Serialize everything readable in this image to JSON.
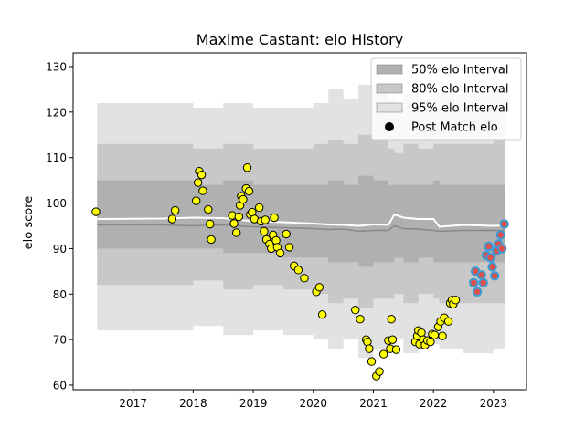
{
  "chart_data": {
    "type": "scatter",
    "title": "Maxime Castant: elo History",
    "xlabel": "",
    "ylabel": "elo score",
    "xlim": [
      2016.0,
      2023.55
    ],
    "ylim": [
      59,
      133
    ],
    "x_ticks": [
      2017,
      2018,
      2019,
      2020,
      2021,
      2022,
      2023
    ],
    "y_ticks": [
      60,
      70,
      80,
      90,
      100,
      110,
      120,
      130
    ],
    "grid": false,
    "legend_position": "top-right",
    "legend": [
      {
        "label": "50% elo Interval",
        "kind": "band",
        "color": "#b0b0b0"
      },
      {
        "label": "80% elo Interval",
        "kind": "band",
        "color": "#c8c8c8"
      },
      {
        "label": "95% elo Interval",
        "kind": "band",
        "color": "#e2e2e2"
      },
      {
        "label": "Post Match elo",
        "kind": "marker",
        "color": "#000000"
      }
    ],
    "colors": {
      "band95": "#e2e2e2",
      "band80": "#c8c8c8",
      "band50": "#b0b0b0",
      "median_line": "#888888",
      "mean_line": "#ffffff",
      "point_fill": "#ffff00",
      "point_edge": "#000000",
      "recent_fill": "#e0504a",
      "recent_edge": "#3a9bd5"
    },
    "bands": {
      "x": [
        2016.4,
        2017.5,
        2018.0,
        2018.5,
        2019.0,
        2019.5,
        2020.0,
        2020.25,
        2020.5,
        2020.75,
        2021.0,
        2021.25,
        2021.35,
        2021.5,
        2021.75,
        2022.0,
        2022.1,
        2022.5,
        2023.0,
        2023.2
      ],
      "lo95": [
        72,
        72,
        73,
        71,
        72,
        71,
        70,
        68,
        70,
        66,
        68,
        68,
        70,
        67,
        70,
        69,
        68,
        67,
        68,
        66
      ],
      "hi95": [
        122,
        122,
        121,
        122,
        121,
        121,
        122,
        125,
        123,
        126,
        126,
        123,
        122,
        124,
        123,
        124,
        124,
        124,
        125,
        127
      ],
      "lo80": [
        82,
        82,
        83,
        81,
        82,
        81,
        80,
        78,
        79,
        77,
        79,
        79,
        80,
        78,
        80,
        79,
        78,
        78,
        78,
        77
      ],
      "hi80": [
        113,
        113,
        112,
        113,
        112,
        112,
        113,
        114,
        113,
        115,
        114,
        112,
        111,
        113,
        112,
        113,
        113,
        113,
        114,
        116
      ],
      "lo50": [
        90,
        90,
        90,
        89,
        89,
        88,
        88,
        87,
        87,
        86,
        87,
        87,
        88,
        87,
        88,
        87,
        87,
        87,
        87,
        86
      ],
      "hi50": [
        105,
        105,
        104,
        105,
        104,
        104,
        104,
        105,
        104,
        106,
        105,
        104,
        104,
        104,
        104,
        105,
        104,
        104,
        104,
        105
      ],
      "median": [
        95.2,
        95.2,
        95.0,
        95.2,
        94.8,
        94.6,
        94.4,
        94.2,
        94.3,
        93.8,
        94.0,
        94.0,
        95.0,
        94.4,
        94.3,
        94.0,
        93.8,
        94.0,
        94.0,
        94.0
      ],
      "mean": [
        96.5,
        96.6,
        96.8,
        96.7,
        96.0,
        95.8,
        95.5,
        95.3,
        95.2,
        95.0,
        95.3,
        95.2,
        97.5,
        96.8,
        96.5,
        96.5,
        94.8,
        95.2,
        95.0,
        95.1
      ]
    },
    "points": [
      {
        "x": 2016.38,
        "y": 98.1
      },
      {
        "x": 2017.65,
        "y": 96.5
      },
      {
        "x": 2017.7,
        "y": 98.4
      },
      {
        "x": 2018.05,
        "y": 100.5
      },
      {
        "x": 2018.08,
        "y": 104.5
      },
      {
        "x": 2018.1,
        "y": 107.0
      },
      {
        "x": 2018.14,
        "y": 106.2
      },
      {
        "x": 2018.16,
        "y": 102.7
      },
      {
        "x": 2018.25,
        "y": 98.6
      },
      {
        "x": 2018.28,
        "y": 95.4
      },
      {
        "x": 2018.3,
        "y": 92.0
      },
      {
        "x": 2018.65,
        "y": 97.3
      },
      {
        "x": 2018.68,
        "y": 95.5
      },
      {
        "x": 2018.72,
        "y": 93.5
      },
      {
        "x": 2018.76,
        "y": 97.0
      },
      {
        "x": 2018.78,
        "y": 99.5
      },
      {
        "x": 2018.8,
        "y": 101.5
      },
      {
        "x": 2018.83,
        "y": 100.8
      },
      {
        "x": 2018.88,
        "y": 103.2
      },
      {
        "x": 2018.9,
        "y": 107.8
      },
      {
        "x": 2018.93,
        "y": 102.6
      },
      {
        "x": 2018.95,
        "y": 97.5
      },
      {
        "x": 2018.98,
        "y": 98.0
      },
      {
        "x": 2019.02,
        "y": 96.5
      },
      {
        "x": 2019.1,
        "y": 99.0
      },
      {
        "x": 2019.13,
        "y": 96.0
      },
      {
        "x": 2019.18,
        "y": 93.8
      },
      {
        "x": 2019.2,
        "y": 96.3
      },
      {
        "x": 2019.22,
        "y": 92.0
      },
      {
        "x": 2019.27,
        "y": 91.0
      },
      {
        "x": 2019.3,
        "y": 90.0
      },
      {
        "x": 2019.33,
        "y": 93.0
      },
      {
        "x": 2019.35,
        "y": 96.8
      },
      {
        "x": 2019.38,
        "y": 91.8
      },
      {
        "x": 2019.4,
        "y": 90.3
      },
      {
        "x": 2019.45,
        "y": 89.0
      },
      {
        "x": 2019.55,
        "y": 93.2
      },
      {
        "x": 2019.6,
        "y": 90.3
      },
      {
        "x": 2019.68,
        "y": 86.2
      },
      {
        "x": 2019.75,
        "y": 85.3
      },
      {
        "x": 2019.85,
        "y": 83.5
      },
      {
        "x": 2020.05,
        "y": 80.5
      },
      {
        "x": 2020.1,
        "y": 81.5
      },
      {
        "x": 2020.15,
        "y": 75.5
      },
      {
        "x": 2020.7,
        "y": 76.5
      },
      {
        "x": 2020.78,
        "y": 74.5
      },
      {
        "x": 2020.88,
        "y": 70.0
      },
      {
        "x": 2020.9,
        "y": 69.5
      },
      {
        "x": 2020.93,
        "y": 68.0
      },
      {
        "x": 2020.97,
        "y": 65.2
      },
      {
        "x": 2021.05,
        "y": 62.0
      },
      {
        "x": 2021.1,
        "y": 63.0
      },
      {
        "x": 2021.17,
        "y": 66.8
      },
      {
        "x": 2021.25,
        "y": 69.8
      },
      {
        "x": 2021.28,
        "y": 68.0
      },
      {
        "x": 2021.3,
        "y": 74.5
      },
      {
        "x": 2021.32,
        "y": 70.0
      },
      {
        "x": 2021.38,
        "y": 67.8
      },
      {
        "x": 2021.7,
        "y": 69.5
      },
      {
        "x": 2021.73,
        "y": 70.8
      },
      {
        "x": 2021.75,
        "y": 72.0
      },
      {
        "x": 2021.77,
        "y": 69.0
      },
      {
        "x": 2021.8,
        "y": 71.5
      },
      {
        "x": 2021.83,
        "y": 70.0
      },
      {
        "x": 2021.86,
        "y": 68.8
      },
      {
        "x": 2021.9,
        "y": 69.8
      },
      {
        "x": 2021.95,
        "y": 69.5
      },
      {
        "x": 2021.98,
        "y": 71.2
      },
      {
        "x": 2022.02,
        "y": 71.0
      },
      {
        "x": 2022.08,
        "y": 72.8
      },
      {
        "x": 2022.12,
        "y": 74.0
      },
      {
        "x": 2022.15,
        "y": 70.8
      },
      {
        "x": 2022.18,
        "y": 74.8
      },
      {
        "x": 2022.25,
        "y": 74.0
      },
      {
        "x": 2022.28,
        "y": 78.0
      },
      {
        "x": 2022.31,
        "y": 78.7
      },
      {
        "x": 2022.33,
        "y": 77.8
      },
      {
        "x": 2022.37,
        "y": 78.7
      },
      {
        "x": 2022.67,
        "y": 82.5,
        "recent": true
      },
      {
        "x": 2022.7,
        "y": 85.0,
        "recent": true
      },
      {
        "x": 2022.73,
        "y": 80.5,
        "recent": true
      },
      {
        "x": 2022.8,
        "y": 84.2,
        "recent": true
      },
      {
        "x": 2022.83,
        "y": 82.5,
        "recent": true
      },
      {
        "x": 2022.88,
        "y": 88.5,
        "recent": true
      },
      {
        "x": 2022.92,
        "y": 90.5,
        "recent": true
      },
      {
        "x": 2022.95,
        "y": 88.0,
        "recent": true
      },
      {
        "x": 2022.98,
        "y": 86.0,
        "recent": true
      },
      {
        "x": 2023.02,
        "y": 84.0,
        "recent": true
      },
      {
        "x": 2023.05,
        "y": 89.5,
        "recent": true
      },
      {
        "x": 2023.08,
        "y": 91.0,
        "recent": true
      },
      {
        "x": 2023.12,
        "y": 93.0,
        "recent": true
      },
      {
        "x": 2023.14,
        "y": 90.0,
        "recent": true
      },
      {
        "x": 2023.18,
        "y": 95.4,
        "recent": true
      }
    ]
  }
}
